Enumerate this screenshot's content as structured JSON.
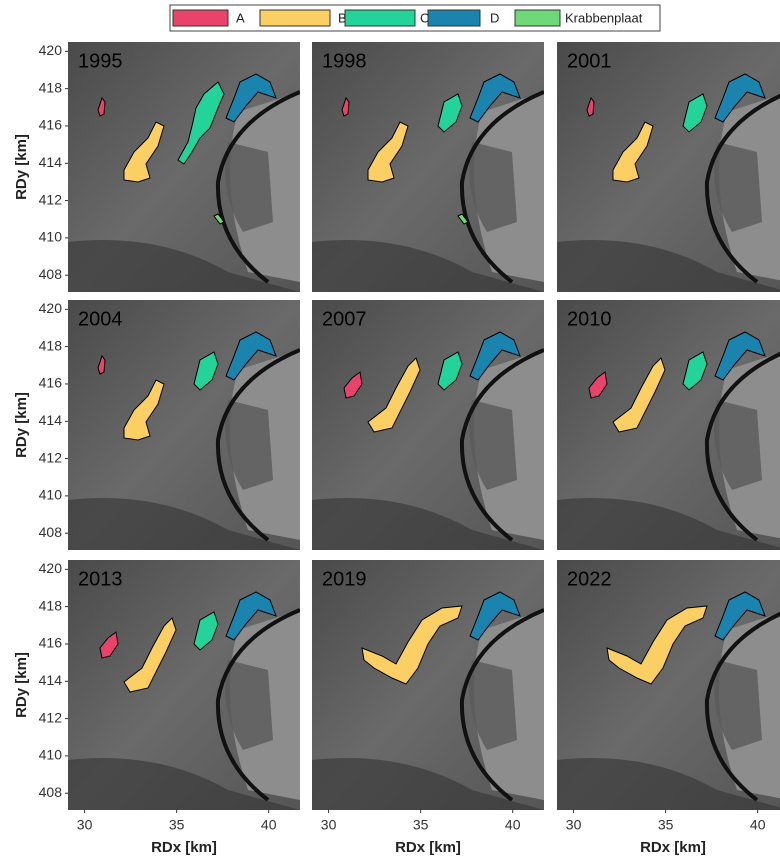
{
  "figure": {
    "legend": [
      {
        "label": "A",
        "color": "#e8436a"
      },
      {
        "label": "B",
        "color": "#fbcf63"
      },
      {
        "label": "C",
        "color": "#24d39a"
      },
      {
        "label": "D",
        "color": "#1a83ae"
      },
      {
        "label": "Krabbenplaat",
        "color": "#6fd97a"
      }
    ],
    "panels": [
      {
        "year": "1995"
      },
      {
        "year": "1998"
      },
      {
        "year": "2001"
      },
      {
        "year": "2004"
      },
      {
        "year": "2007"
      },
      {
        "year": "2010"
      },
      {
        "year": "2013"
      },
      {
        "year": "2019"
      },
      {
        "year": "2022"
      }
    ],
    "xlabel": "RDx [km]",
    "ylabel": "RDy [km]",
    "xlim": [
      29.1,
      41.7
    ],
    "xticks": [
      30,
      35,
      40
    ],
    "ylim": [
      407.1,
      420.5
    ],
    "yticks": [
      408,
      410,
      412,
      414,
      416,
      418,
      420
    ]
  }
}
